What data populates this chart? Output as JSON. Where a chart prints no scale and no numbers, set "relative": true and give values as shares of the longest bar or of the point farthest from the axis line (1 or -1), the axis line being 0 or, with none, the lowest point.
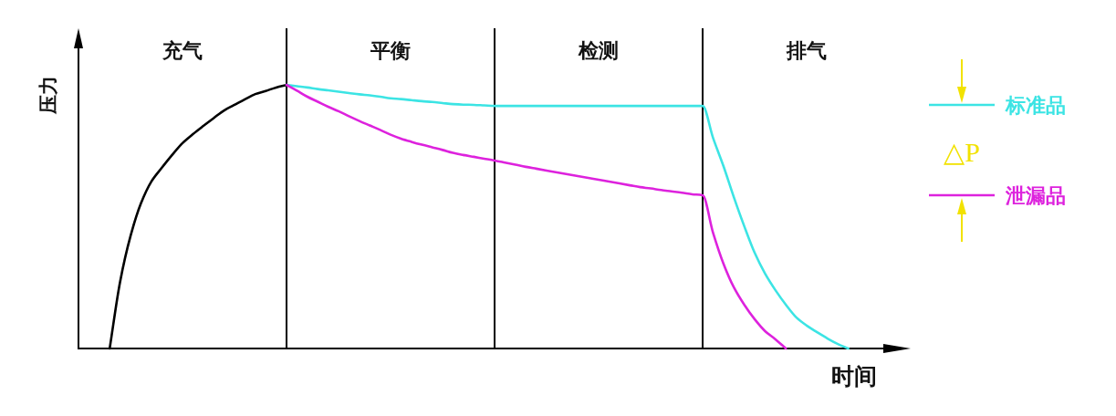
{
  "chart_data": {
    "type": "line",
    "relative": true,
    "xlabel": "时间",
    "ylabel": "压力",
    "legend": "right",
    "categories": [
      null,
      null,
      null,
      null,
      null,
      null,
      null,
      null,
      null,
      null,
      "充气",
      null,
      null,
      null,
      null,
      null,
      null,
      null,
      null,
      null,
      null,
      null,
      null,
      null,
      null,
      null,
      null,
      null,
      null,
      null,
      "平衡",
      null,
      null,
      null,
      null,
      null,
      null,
      null,
      null,
      null,
      null,
      null,
      null,
      null,
      null,
      null,
      null,
      null,
      null,
      null,
      "检测",
      null,
      null,
      null,
      null,
      null,
      null,
      null,
      null,
      null,
      null,
      null,
      null,
      null,
      null,
      null,
      null,
      null,
      null,
      null,
      "排气",
      null,
      null,
      null,
      null,
      null,
      null,
      null,
      null,
      null,
      null
    ],
    "series": [
      {
        "color": "#000000",
        "values": [
          null,
          null,
          null,
          0,
          0.253,
          0.426,
          0.55,
          0.633,
          0.685,
          0.734,
          0.779,
          0.813,
          0.844,
          0.874,
          0.903,
          0.924,
          0.945,
          0.965,
          0.977,
          0.99,
          1,
          null,
          null,
          null,
          null,
          null,
          null,
          null,
          null,
          null,
          null,
          null,
          null,
          null,
          null,
          null,
          null,
          null,
          null,
          null,
          null,
          null,
          null,
          null,
          null,
          null,
          null,
          null,
          null,
          null,
          null,
          null,
          null,
          null,
          null,
          null,
          null,
          null,
          null,
          null,
          null,
          null,
          null,
          null,
          null,
          null,
          null,
          null,
          null,
          null,
          null,
          null,
          null,
          null,
          null,
          null,
          null,
          null,
          null,
          null,
          null
        ]
      },
      {
        "name": "标准品",
        "color": "#3ce4e4",
        "values": [
          null,
          null,
          null,
          null,
          null,
          null,
          null,
          null,
          null,
          null,
          null,
          null,
          null,
          null,
          null,
          null,
          null,
          null,
          null,
          null,
          1,
          0.995,
          0.99,
          0.984,
          0.979,
          0.974,
          0.969,
          0.964,
          0.96,
          0.955,
          0.949,
          0.946,
          0.942,
          0.938,
          0.935,
          0.931,
          0.927,
          0.925,
          0.924,
          0.922,
          0.92,
          0.92,
          0.92,
          0.92,
          0.92,
          0.92,
          0.92,
          0.92,
          0.92,
          0.92,
          0.92,
          0.92,
          0.92,
          0.92,
          0.92,
          0.92,
          0.92,
          0.92,
          0.92,
          0.92,
          0.92,
          0.799,
          0.692,
          0.574,
          0.464,
          0.363,
          0.284,
          0.221,
          0.166,
          0.118,
          0.087,
          0.062,
          0.038,
          0.017,
          0,
          null,
          null,
          null,
          null,
          null,
          null
        ]
      },
      {
        "name": "泄漏品",
        "color": "#dd22dd",
        "values": [
          null,
          null,
          null,
          null,
          null,
          null,
          null,
          null,
          null,
          null,
          null,
          null,
          null,
          null,
          null,
          null,
          null,
          null,
          null,
          null,
          1,
          0.978,
          0.955,
          0.936,
          0.917,
          0.9,
          0.881,
          0.863,
          0.846,
          0.829,
          0.811,
          0.796,
          0.784,
          0.773,
          0.763,
          0.753,
          0.742,
          0.734,
          0.727,
          0.72,
          0.713,
          0.705,
          0.697,
          0.689,
          0.682,
          0.675,
          0.668,
          0.661,
          0.654,
          0.647,
          0.64,
          0.633,
          0.626,
          0.619,
          0.612,
          0.607,
          0.601,
          0.596,
          0.591,
          0.585,
          0.581,
          0.439,
          0.322,
          0.232,
          0.166,
          0.111,
          0.066,
          0.035,
          0,
          null,
          null,
          null,
          null,
          null,
          null,
          null,
          null,
          null,
          null,
          null,
          null
        ]
      }
    ],
    "annotations": [
      "△P"
    ]
  }
}
